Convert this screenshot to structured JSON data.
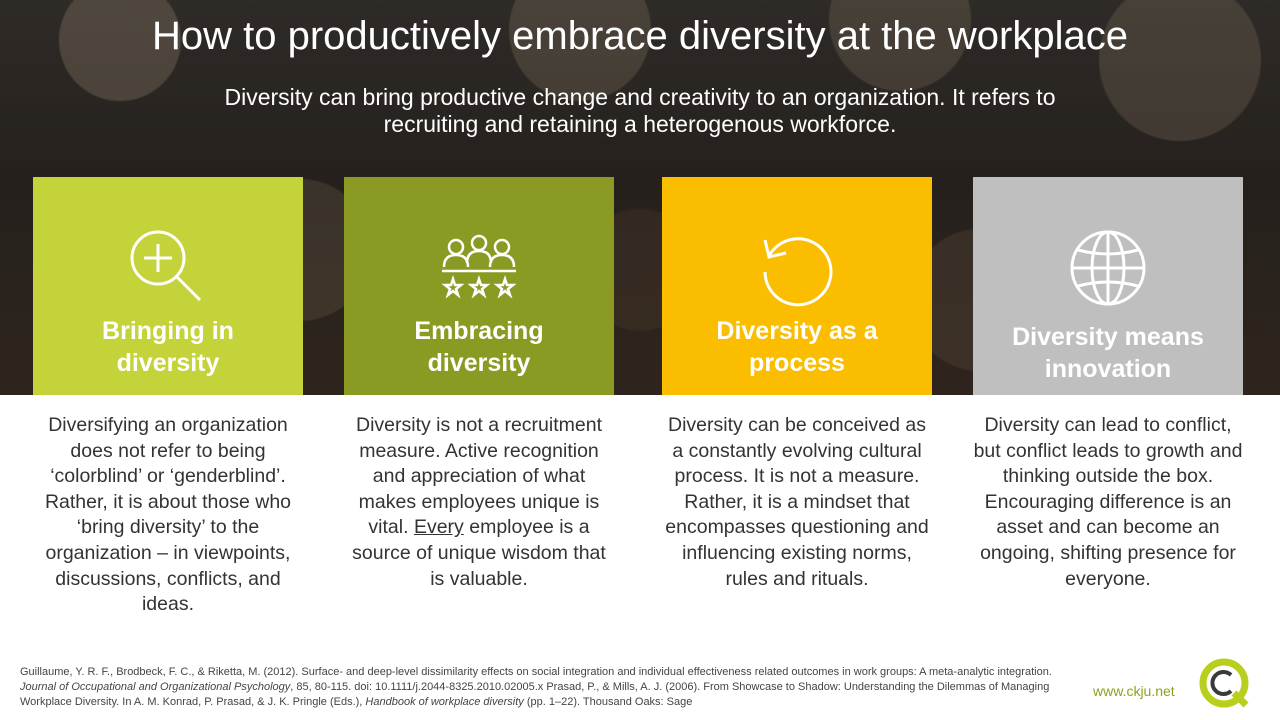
{
  "title": "How to productively embrace diversity at the workplace",
  "subtitle": "Diversity can bring productive change and creativity to an organization. It refers to recruiting and retaining a heterogenous workforce.",
  "cards": [
    {
      "icon": "magnifier-plus-icon",
      "color": "#c5d33b",
      "label_line1": "Bringing in",
      "label_line2": "diversity",
      "text": "Diversifying an organization does not refer to being ‘colorblind’ or ‘genderblind’. Rather, it is about those who ‘bring diversity’ to the organization – in viewpoints, discussions, conflicts, and ideas."
    },
    {
      "icon": "people-stars-icon",
      "color": "#8b9a22",
      "label_line1": "Embracing",
      "label_line2": "diversity",
      "text_before": "Diversity is not a recruitment measure. Active recognition and appreciation of what makes employees unique is vital.",
      "text_underlined": "Every",
      "text_after": "employee is a source of unique wisdom that is valuable."
    },
    {
      "icon": "circular-arrow-icon",
      "color": "#fbbd00",
      "label_line1": "Diversity as a",
      "label_line2": "process",
      "text": "Diversity can be conceived as a constantly evolving cultural process. It is not a measure. Rather, it is a mindset that encompasses questioning and influencing existing norms, rules and rituals."
    },
    {
      "icon": "globe-icon",
      "color": "#bfbfbf",
      "label_line1": "Diversity means",
      "label_line2": "innovation",
      "text": "Diversity can lead to conflict, but conflict leads to growth and thinking outside the box. Encouraging difference is an asset and can become an ongoing, shifting presence for everyone."
    }
  ],
  "references": {
    "ref1_a": "Guillaume, Y. R. F., Brodbeck, F. C., & Riketta, M. (2012). Surface- and deep-level dissimilarity effects on social integration and individual effectiveness related outcomes in work groups: A meta-analytic integration.",
    "ref1_journal": "Journal of Occupational and Organizational Psychology",
    "ref1_b": ", 85, 80-115. doi: 10.1111/j.2044-8325.2010.02005.x Prasad, P., & Mills, A. J. (2006). From Showcase to Shadow: Understanding the Dilemmas of Managing Workplace Diversity. In A. M. Konrad, P. Prasad, & J. K. Pringle (Eds.),",
    "ref2_book": "Handbook of workplace diversity",
    "ref2_b": "(pp. 1–22). Thousand Oaks: Sage"
  },
  "website": "www.ckju.net",
  "logo_icon": "ckju-logo-icon"
}
